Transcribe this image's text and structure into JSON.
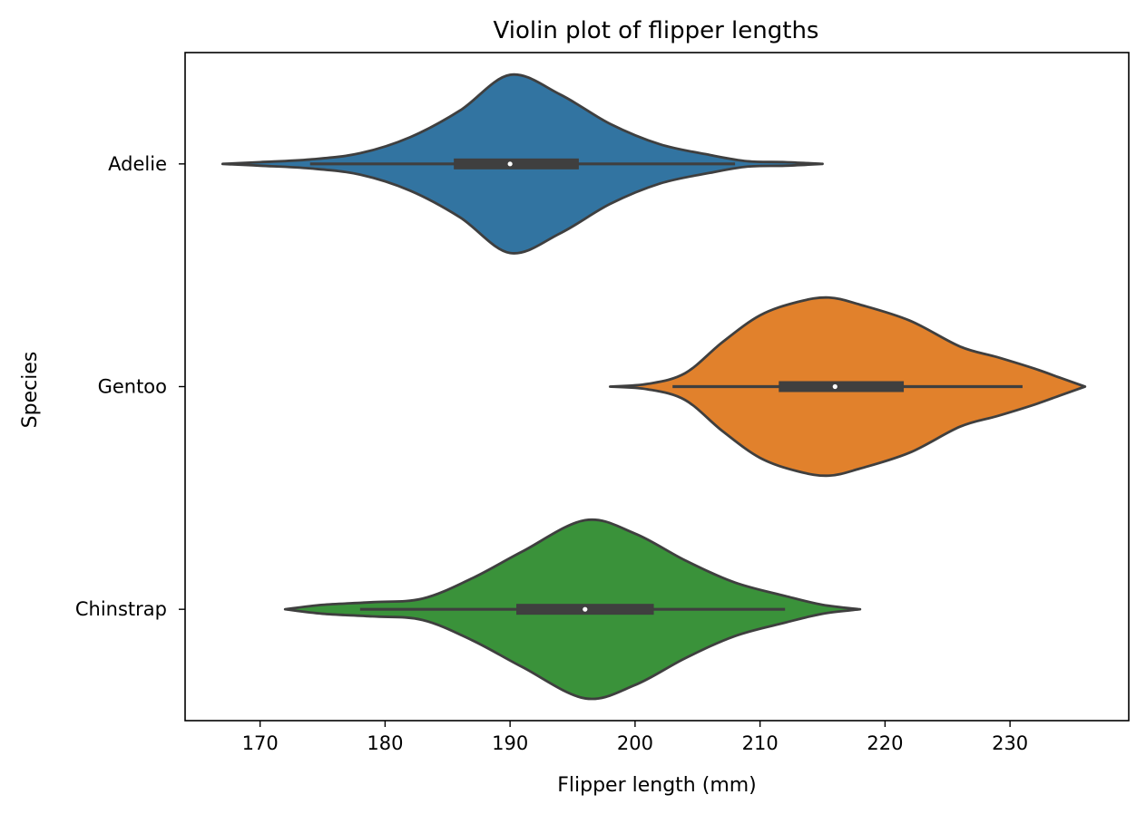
{
  "chart_data": {
    "type": "violin",
    "orientation": "horizontal",
    "title": "Violin plot of flipper lengths",
    "xlabel": "Flipper length (mm)",
    "ylabel": "Species",
    "xlim": [
      164,
      239.5
    ],
    "xticks": [
      170,
      180,
      190,
      200,
      210,
      220,
      230
    ],
    "grid": false,
    "categories": [
      "Adelie",
      "Gentoo",
      "Chinstrap"
    ],
    "series": [
      {
        "name": "Adelie",
        "color": "#3274a1",
        "range": [
          167,
          215
        ],
        "whisker": [
          174,
          208
        ],
        "q1": 185.5,
        "median": 190,
        "q3": 195.5,
        "density": [
          [
            167,
            0.0
          ],
          [
            170,
            0.02
          ],
          [
            174,
            0.05
          ],
          [
            178,
            0.12
          ],
          [
            182,
            0.3
          ],
          [
            186,
            0.6
          ],
          [
            190,
            1.0
          ],
          [
            194,
            0.78
          ],
          [
            198,
            0.45
          ],
          [
            202,
            0.22
          ],
          [
            206,
            0.1
          ],
          [
            209,
            0.03
          ],
          [
            212,
            0.02
          ],
          [
            215,
            0.0
          ]
        ]
      },
      {
        "name": "Gentoo",
        "color": "#e1812c",
        "range": [
          198,
          236
        ],
        "whisker": [
          203,
          231
        ],
        "q1": 211.5,
        "median": 216,
        "q3": 221.5,
        "density": [
          [
            198,
            0.0
          ],
          [
            201,
            0.03
          ],
          [
            204,
            0.15
          ],
          [
            207,
            0.5
          ],
          [
            210,
            0.8
          ],
          [
            213,
            0.95
          ],
          [
            215.5,
            1.0
          ],
          [
            218,
            0.92
          ],
          [
            222,
            0.74
          ],
          [
            226,
            0.45
          ],
          [
            229,
            0.33
          ],
          [
            232,
            0.2
          ],
          [
            234,
            0.1
          ],
          [
            236,
            0.0
          ]
        ]
      },
      {
        "name": "Chinstrap",
        "color": "#3a923a",
        "range": [
          172,
          218
        ],
        "whisker": [
          178,
          212
        ],
        "q1": 190.5,
        "median": 196,
        "q3": 201.5,
        "density": [
          [
            172,
            0.0
          ],
          [
            175,
            0.05
          ],
          [
            179,
            0.08
          ],
          [
            183,
            0.12
          ],
          [
            187,
            0.35
          ],
          [
            191,
            0.65
          ],
          [
            196,
            1.0
          ],
          [
            200,
            0.85
          ],
          [
            204,
            0.55
          ],
          [
            208,
            0.3
          ],
          [
            212,
            0.15
          ],
          [
            215,
            0.05
          ],
          [
            218,
            0.0
          ]
        ]
      }
    ],
    "style": {
      "outline": "#3f3f3f",
      "box": "#3f3f3f",
      "median_marker": "#ffffff",
      "frame": "#000000"
    }
  }
}
